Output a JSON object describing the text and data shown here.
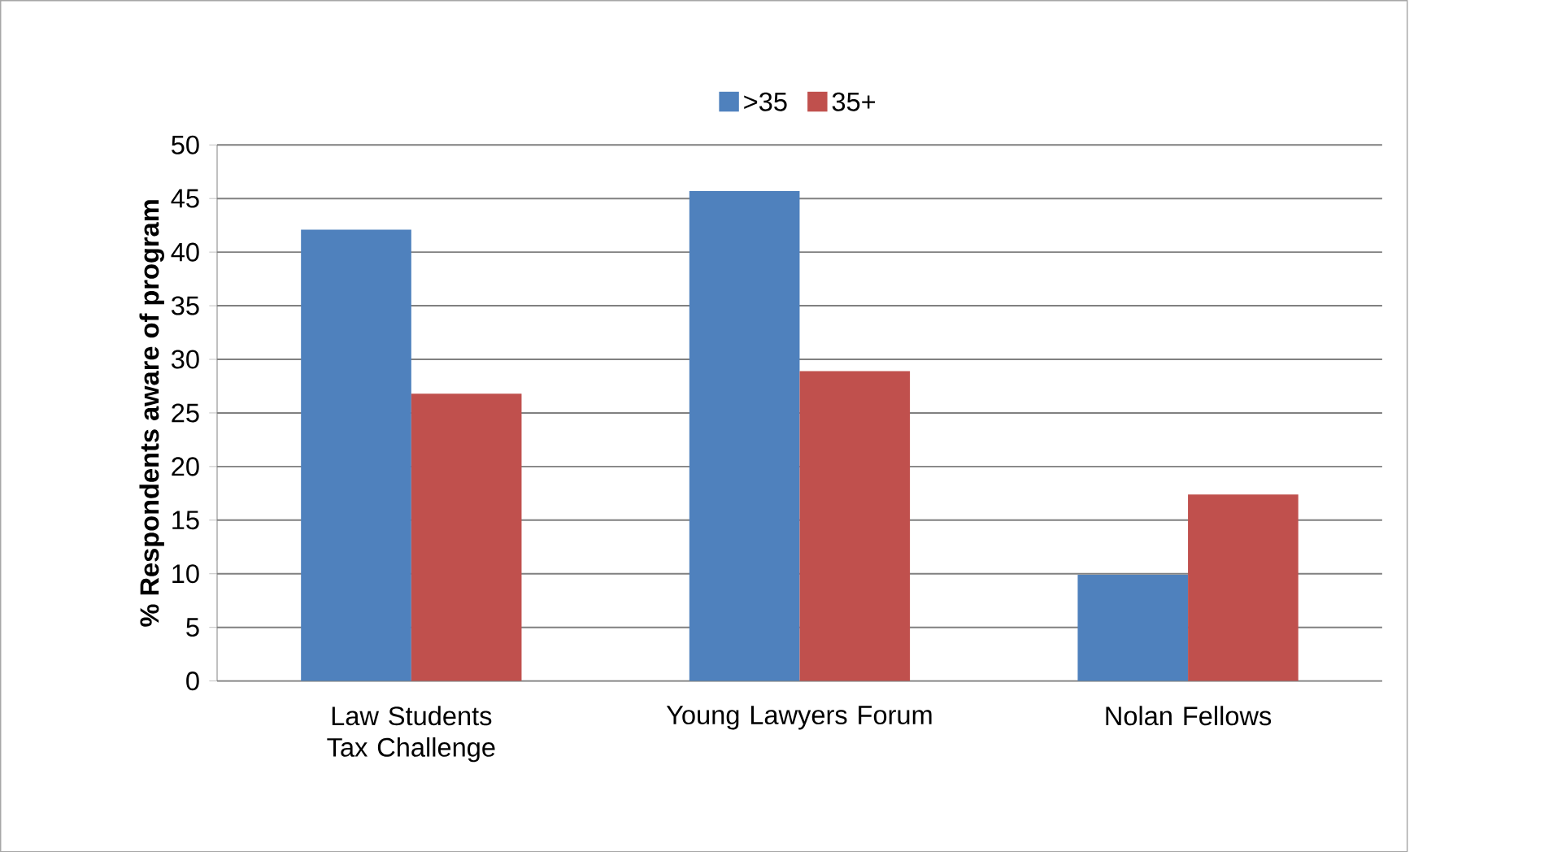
{
  "chart_data": {
    "type": "bar",
    "ylabel": "% Respondents aware of program",
    "categories": [
      "Law Students Tax Challenge",
      "Young Lawyers Forum",
      "Nolan Fellows"
    ],
    "series": [
      {
        "name": ">35",
        "color": "#4f81bd",
        "values": [
          42.1,
          45.7,
          9.9
        ]
      },
      {
        "name": "35+",
        "color": "#c0504d",
        "values": [
          26.8,
          28.9,
          17.4
        ]
      }
    ],
    "ylim": [
      0,
      50
    ],
    "yticks": [
      0,
      5,
      10,
      15,
      20,
      25,
      30,
      35,
      40,
      45,
      50
    ],
    "grid": "y",
    "legend": "top"
  }
}
